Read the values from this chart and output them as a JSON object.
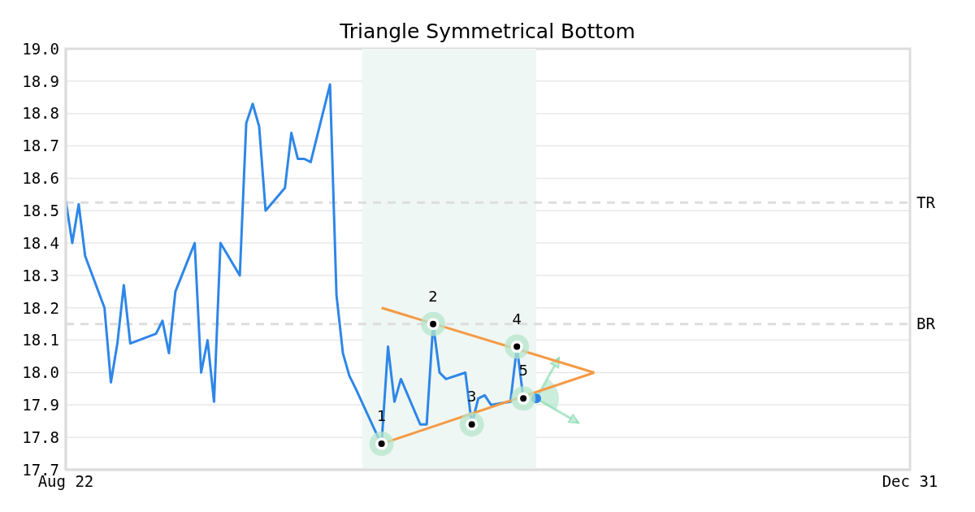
{
  "chart_data": {
    "type": "line",
    "title": "Triangle Symmetrical Bottom",
    "xlim": [
      "--08-22",
      "--12-31"
    ],
    "xticks": [
      {
        "value": "--08-22",
        "label": "Aug 22"
      },
      {
        "value": "--12-31",
        "label": "Dec 31"
      }
    ],
    "ylim": [
      17.7,
      19.0
    ],
    "yticks": [
      17.7,
      17.8,
      17.9,
      {
        "value": 18,
        "label": "18.0"
      },
      18.1,
      18.2,
      18.3,
      18.4,
      18.5,
      18.6,
      18.7,
      18.8,
      18.9,
      {
        "value": 19,
        "label": "19.0"
      }
    ],
    "grid": "y",
    "series": [
      {
        "color": "#2e86e8",
        "x": [
          "--08-22",
          "--08-23",
          "--08-24",
          "--08-25",
          "--08-28",
          "--08-29",
          "--08-30",
          "--08-31",
          "--09-01",
          "--09-05",
          "--09-06",
          "--09-07",
          "--09-08",
          "--09-11",
          "--09-12",
          "--09-13",
          "--09-14",
          "--09-15",
          "--09-18",
          "--09-19",
          "--09-20",
          "--09-21",
          "--09-22",
          "--09-25",
          "--09-26",
          "--09-27",
          "--09-28",
          "--09-29",
          "--10-02",
          "--10-03",
          "--10-04",
          "--10-05",
          "--10-06",
          "--10-09",
          "--10-10",
          "--10-11",
          "--10-12",
          "--10-13",
          "--10-16",
          "--10-17",
          "--10-18",
          "--10-19",
          "--10-20",
          "--10-23",
          "--10-24",
          "--10-25",
          "--10-26",
          "--10-27",
          "--10-30",
          "--10-31",
          "--11-01"
        ],
        "values": [
          18.53,
          18.4,
          18.52,
          18.36,
          18.2,
          17.97,
          18.09,
          18.27,
          18.09,
          18.12,
          18.16,
          18.06,
          18.25,
          18.4,
          18.0,
          18.1,
          17.91,
          18.4,
          18.3,
          18.77,
          18.83,
          18.76,
          18.5,
          18.57,
          18.74,
          18.66,
          18.66,
          18.65,
          18.89,
          18.24,
          18.06,
          17.99,
          17.95,
          17.82,
          17.78,
          18.08,
          17.91,
          17.98,
          17.84,
          17.84,
          18.15,
          18.0,
          17.98,
          18.0,
          17.84,
          17.92,
          17.93,
          17.9,
          17.91,
          18.08,
          17.92
        ]
      },
      {
        "type": "scatter",
        "color": "#2e86e8",
        "marker": "circle",
        "x": [
          "--11-03"
        ],
        "values": [
          17.92
        ]
      },
      {
        "type": "scatter",
        "color": "#000000",
        "marker": "circle",
        "x": [
          "--10-10",
          "--10-18",
          "--10-24",
          "--10-31",
          "--11-01"
        ],
        "values": [
          17.78,
          18.15,
          17.84,
          18.08,
          17.92
        ]
      },
      {
        "color": "#f59a45",
        "x": [
          "--10-10",
          "--11-12"
        ],
        "values": [
          18.2,
          18.0
        ]
      },
      {
        "color": "#f59a45",
        "x": [
          "--10-10",
          "--11-12"
        ],
        "values": [
          17.78,
          18.0
        ]
      }
    ],
    "annotations": [
      {
        "text": "1",
        "x": "--10-10",
        "y": 17.78
      },
      {
        "text": "2",
        "x": "--10-18",
        "y": 18.15
      },
      {
        "text": "3",
        "x": "--10-24",
        "y": 17.84
      },
      {
        "text": "4",
        "x": "--10-31",
        "y": 18.08
      },
      {
        "text": "5",
        "x": "--11-01",
        "y": 17.92
      }
    ],
    "ref_lines": [
      {
        "axis": "y",
        "value": 18.525,
        "label": "TR",
        "color": "#dddddd",
        "line_style": "dashed"
      },
      {
        "axis": "y",
        "value": 18.15,
        "label": "BR",
        "color": "#dddddd",
        "line_style": "dashed"
      }
    ],
    "bands": [
      {
        "axis": "x",
        "from": "--10-07",
        "to": "--11-03",
        "color": "#eef7f3"
      }
    ]
  }
}
